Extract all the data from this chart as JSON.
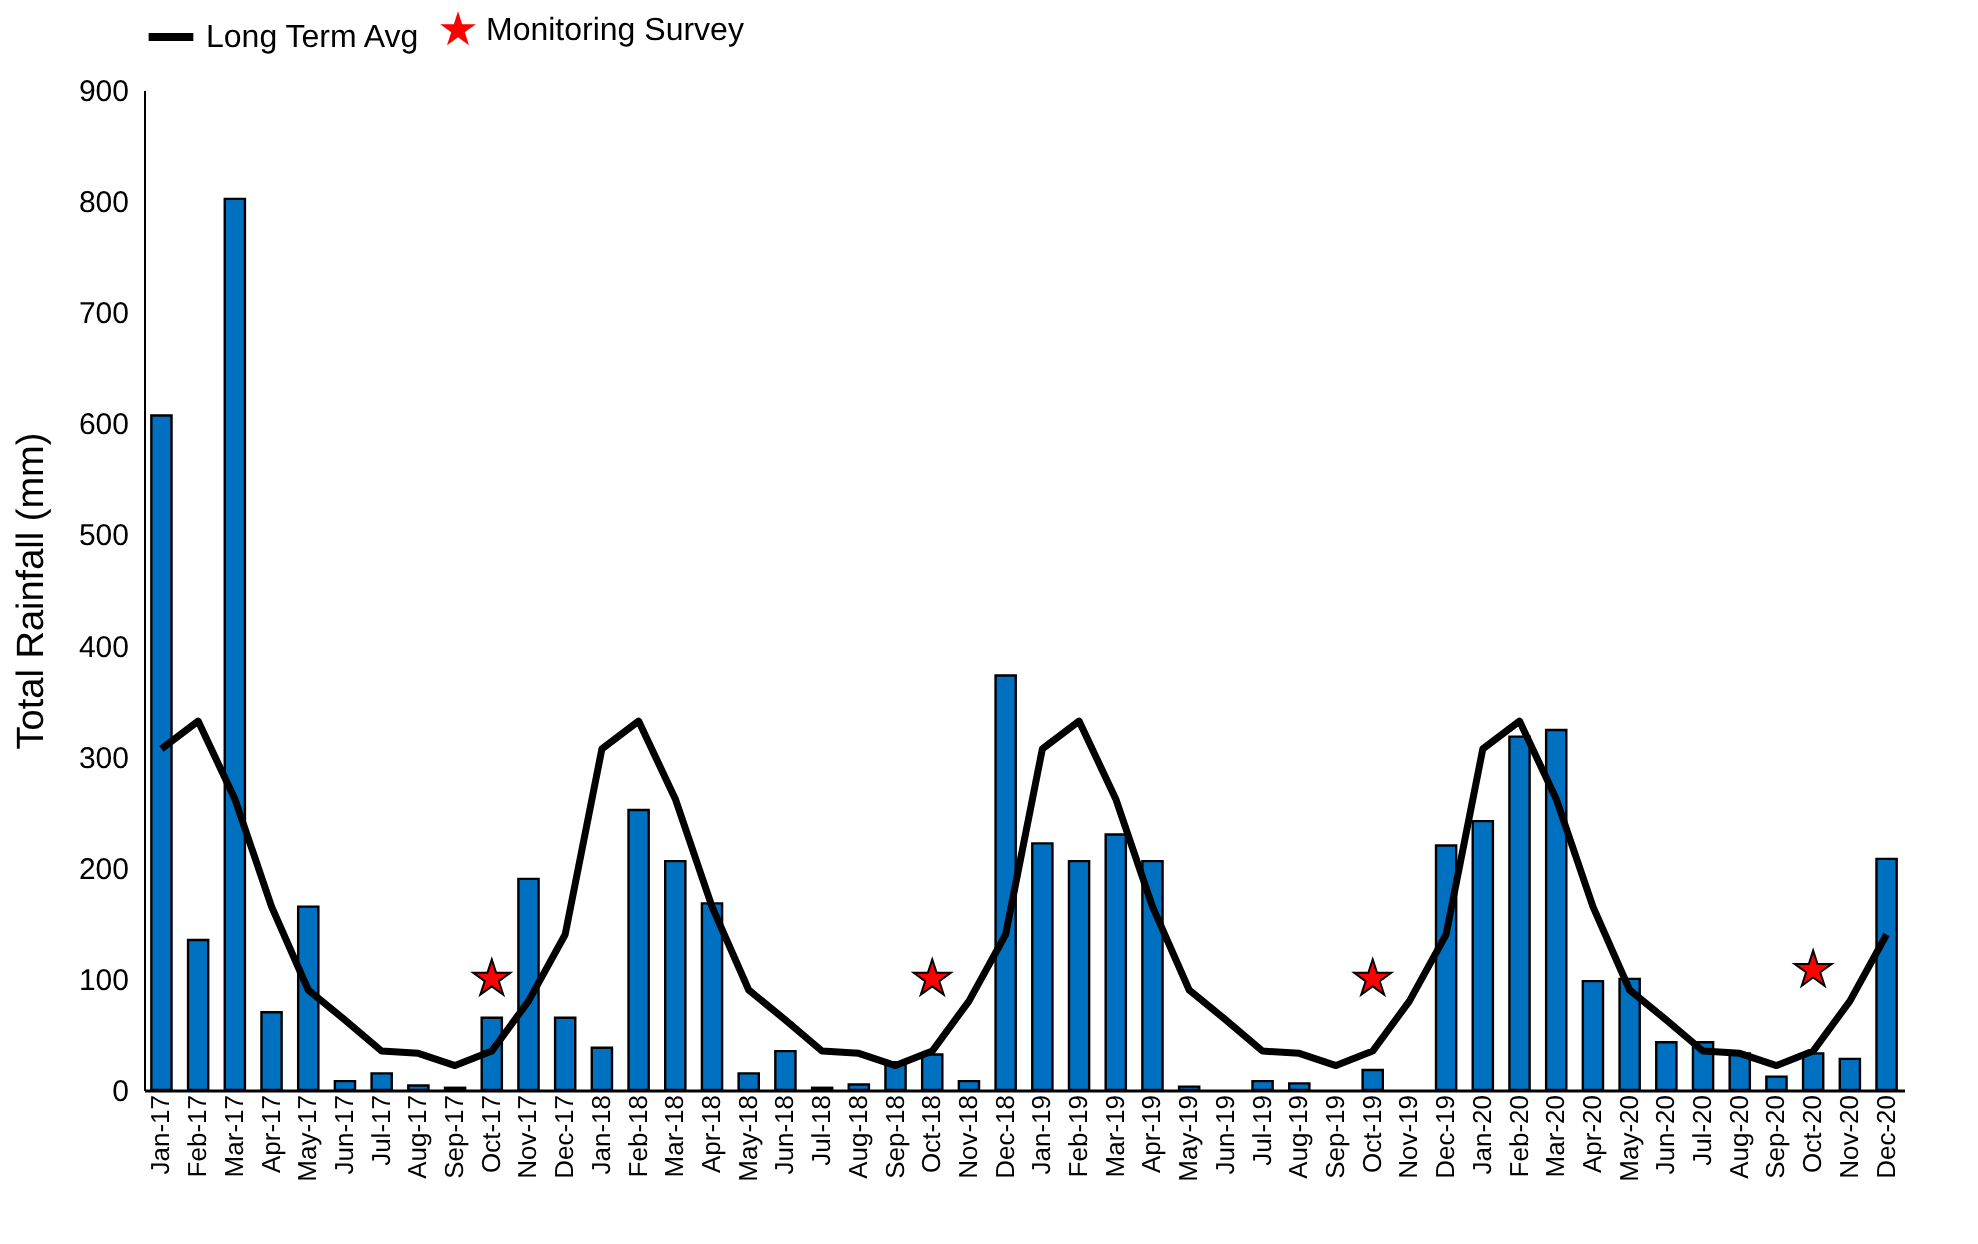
{
  "chart_data": {
    "type": "bar",
    "ylabel": "Total Rainfall (mm)",
    "categories": [
      "Jan-17",
      "Feb-17",
      "Mar-17",
      "Apr-17",
      "May-17",
      "Jun-17",
      "Jul-17",
      "Aug-17",
      "Sep-17",
      "Oct-17",
      "Nov-17",
      "Dec-17",
      "Jan-18",
      "Feb-18",
      "Mar-18",
      "Apr-18",
      "May-18",
      "Jun-18",
      "Jul-18",
      "Aug-18",
      "Sep-18",
      "Oct-18",
      "Nov-18",
      "Dec-18",
      "Jan-19",
      "Feb-19",
      "Mar-19",
      "Apr-19",
      "May-19",
      "Jun-19",
      "Jul-19",
      "Aug-19",
      "Sep-19",
      "Oct-19",
      "Nov-19",
      "Dec-19",
      "Jan-20",
      "Feb-20",
      "Mar-20",
      "Apr-20",
      "May-20",
      "Jun-20",
      "Jul-20",
      "Aug-20",
      "Sep-20",
      "Oct-20",
      "Nov-20",
      "Dec-20"
    ],
    "series": [
      {
        "color": "#0070c0",
        "values": [
          607,
          135,
          802,
          70,
          165,
          8,
          15,
          4,
          2,
          65,
          190,
          65,
          38,
          252,
          206,
          168,
          15,
          35,
          2,
          5,
          25,
          32,
          8,
          373,
          222,
          206,
          230,
          206,
          3,
          null,
          8,
          6,
          null,
          18,
          null,
          220,
          242,
          318,
          324,
          98,
          100,
          43,
          43,
          33,
          12,
          33,
          28,
          208
        ]
      },
      {
        "type": "line",
        "name": "Long Term Avg",
        "color": "#000000",
        "values": [
          307,
          332,
          262,
          165,
          90,
          63,
          35,
          33,
          22,
          35,
          80,
          140,
          307,
          332,
          262,
          165,
          90,
          63,
          35,
          33,
          22,
          35,
          80,
          140,
          307,
          332,
          262,
          165,
          90,
          63,
          35,
          33,
          22,
          35,
          80,
          140,
          307,
          332,
          262,
          165,
          90,
          63,
          35,
          33,
          22,
          35,
          80,
          140
        ]
      },
      {
        "type": "scatter",
        "name": "Monitoring Survey",
        "color": "#ff0000",
        "marker": "star",
        "values": [
          null,
          null,
          null,
          null,
          null,
          null,
          null,
          null,
          null,
          100,
          null,
          null,
          null,
          null,
          null,
          null,
          null,
          null,
          null,
          null,
          null,
          100,
          null,
          null,
          null,
          null,
          null,
          null,
          null,
          null,
          null,
          null,
          null,
          100,
          null,
          null,
          null,
          null,
          null,
          null,
          null,
          null,
          null,
          null,
          null,
          108,
          null,
          null
        ]
      }
    ],
    "ylim": [
      0,
      900
    ],
    "yticks": [
      0,
      100,
      200,
      300,
      400,
      500,
      600,
      700,
      800,
      900
    ],
    "grid": false,
    "legend": "top"
  }
}
